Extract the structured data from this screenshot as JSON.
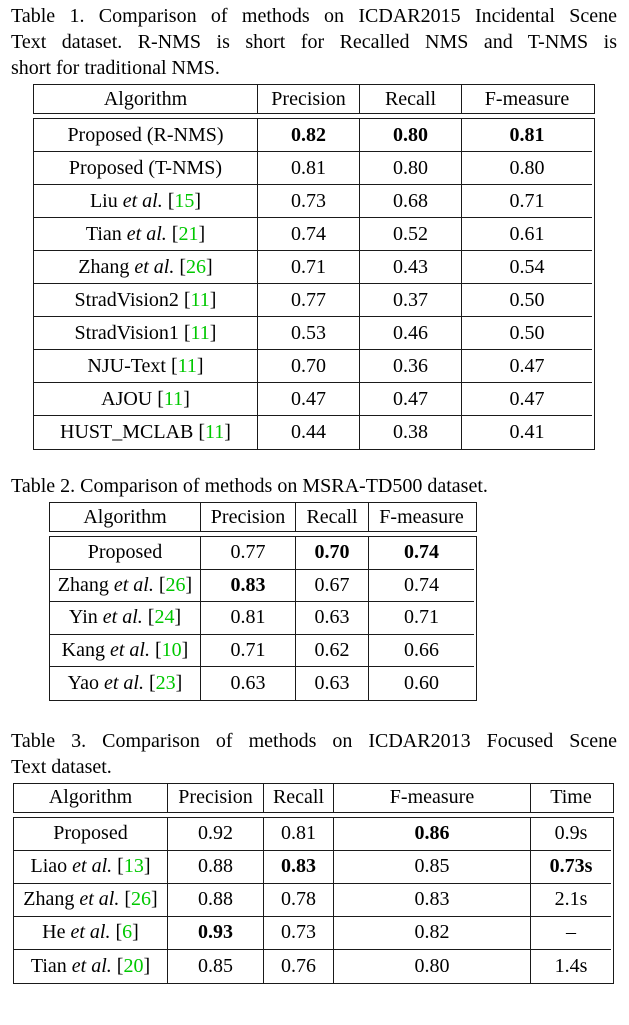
{
  "colors": {
    "page_background": "#ffffff",
    "text_black": "#000000",
    "table_border": "#1a1a1a",
    "citation_green": "#00c800"
  },
  "captions": {
    "table1": {
      "lines": [
        "Table 1. Comparison of methods on ICDAR2015 Incidental Scene",
        "Text dataset.  R-NMS is short for Recalled NMS and T-NMS is",
        "short for traditional NMS."
      ]
    },
    "table2": {
      "lines": [
        "Table 2. Comparison of methods on MSRA-TD500 dataset."
      ]
    },
    "table3": {
      "lines": [
        "Table 3. Comparison of methods on ICDAR2013 Focused Scene",
        "Text dataset."
      ]
    }
  },
  "tables": [
    {
      "name": "ICDAR2015 Incidental Scene Text results",
      "headers": [
        "Algorithm",
        "Precision",
        "Recall",
        "F-measure"
      ],
      "rows": [
        {
          "algorithm": [
            {
              "t": "Proposed (R-NMS)"
            }
          ],
          "values": [
            {
              "t": "0.82",
              "b": 1
            },
            {
              "t": "0.80",
              "b": 1
            },
            {
              "t": "0.81",
              "b": 1
            }
          ]
        },
        {
          "algorithm": [
            {
              "t": "Proposed (T-NMS)"
            }
          ],
          "values": [
            "0.81",
            "0.80",
            "0.80"
          ]
        },
        {
          "algorithm": [
            {
              "t": "Liu "
            },
            {
              "t": "et al.",
              "i": 1
            },
            {
              "t": " ["
            },
            {
              "t": "15",
              "c": 1
            },
            {
              "t": "]"
            }
          ],
          "values": [
            "0.73",
            "0.68",
            "0.71"
          ]
        },
        {
          "algorithm": [
            {
              "t": "Tian "
            },
            {
              "t": "et al.",
              "i": 1
            },
            {
              "t": " ["
            },
            {
              "t": "21",
              "c": 1
            },
            {
              "t": "]"
            }
          ],
          "values": [
            "0.74",
            "0.52",
            "0.61"
          ]
        },
        {
          "algorithm": [
            {
              "t": "Zhang "
            },
            {
              "t": "et al.",
              "i": 1
            },
            {
              "t": " ["
            },
            {
              "t": "26",
              "c": 1
            },
            {
              "t": "]"
            }
          ],
          "values": [
            "0.71",
            "0.43",
            "0.54"
          ]
        },
        {
          "algorithm": [
            {
              "t": "StradVision2 ["
            },
            {
              "t": "11",
              "c": 1
            },
            {
              "t": "]"
            }
          ],
          "values": [
            "0.77",
            "0.37",
            "0.50"
          ]
        },
        {
          "algorithm": [
            {
              "t": "StradVision1 ["
            },
            {
              "t": "11",
              "c": 1
            },
            {
              "t": "]"
            }
          ],
          "values": [
            "0.53",
            "0.46",
            "0.50"
          ]
        },
        {
          "algorithm": [
            {
              "t": "NJU-Text ["
            },
            {
              "t": "11",
              "c": 1
            },
            {
              "t": "]"
            }
          ],
          "values": [
            "0.70",
            "0.36",
            "0.47"
          ]
        },
        {
          "algorithm": [
            {
              "t": "AJOU ["
            },
            {
              "t": "11",
              "c": 1
            },
            {
              "t": "]"
            }
          ],
          "values": [
            "0.47",
            "0.47",
            "0.47"
          ]
        },
        {
          "algorithm": [
            {
              "t": "HUST_MCLAB ["
            },
            {
              "t": "11",
              "c": 1
            },
            {
              "t": "]"
            }
          ],
          "values": [
            "0.44",
            "0.38",
            "0.41"
          ]
        }
      ]
    },
    {
      "name": "MSRA-TD500 results",
      "headers": [
        "Algorithm",
        "Precision",
        "Recall",
        "F-measure"
      ],
      "rows": [
        {
          "algorithm": [
            {
              "t": "Proposed"
            }
          ],
          "values": [
            "0.77",
            {
              "t": "0.70",
              "b": 1
            },
            {
              "t": "0.74",
              "b": 1
            }
          ]
        },
        {
          "algorithm": [
            {
              "t": "Zhang "
            },
            {
              "t": "et al.",
              "i": 1
            },
            {
              "t": " ["
            },
            {
              "t": "26",
              "c": 1
            },
            {
              "t": "]"
            }
          ],
          "values": [
            {
              "t": "0.83",
              "b": 1
            },
            "0.67",
            "0.74"
          ]
        },
        {
          "algorithm": [
            {
              "t": "Yin "
            },
            {
              "t": "et al.",
              "i": 1
            },
            {
              "t": " ["
            },
            {
              "t": "24",
              "c": 1
            },
            {
              "t": "]"
            }
          ],
          "values": [
            "0.81",
            "0.63",
            "0.71"
          ]
        },
        {
          "algorithm": [
            {
              "t": "Kang "
            },
            {
              "t": "et al.",
              "i": 1
            },
            {
              "t": " ["
            },
            {
              "t": "10",
              "c": 1
            },
            {
              "t": "]"
            }
          ],
          "values": [
            "0.71",
            "0.62",
            "0.66"
          ]
        },
        {
          "algorithm": [
            {
              "t": "Yao "
            },
            {
              "t": "et al.",
              "i": 1
            },
            {
              "t": " ["
            },
            {
              "t": "23",
              "c": 1
            },
            {
              "t": "]"
            }
          ],
          "values": [
            "0.63",
            "0.63",
            "0.60"
          ]
        }
      ]
    },
    {
      "name": "ICDAR2013 Focused Scene Text results",
      "headers": [
        "Algorithm",
        "Precision",
        "Recall",
        "F-measure",
        "Time"
      ],
      "rows": [
        {
          "algorithm": [
            {
              "t": "Proposed"
            }
          ],
          "values": [
            "0.92",
            "0.81",
            {
              "t": "0.86",
              "b": 1
            },
            "0.9s"
          ]
        },
        {
          "algorithm": [
            {
              "t": "Liao "
            },
            {
              "t": "et al.",
              "i": 1
            },
            {
              "t": " ["
            },
            {
              "t": "13",
              "c": 1
            },
            {
              "t": "]"
            }
          ],
          "values": [
            "0.88",
            {
              "t": "0.83",
              "b": 1
            },
            "0.85",
            {
              "t": "0.73s",
              "b": 1
            }
          ]
        },
        {
          "algorithm": [
            {
              "t": "Zhang "
            },
            {
              "t": "et al.",
              "i": 1
            },
            {
              "t": " ["
            },
            {
              "t": "26",
              "c": 1
            },
            {
              "t": "]"
            }
          ],
          "values": [
            "0.88",
            "0.78",
            "0.83",
            "2.1s"
          ]
        },
        {
          "algorithm": [
            {
              "t": "He "
            },
            {
              "t": "et al.",
              "i": 1
            },
            {
              "t": " ["
            },
            {
              "t": "6",
              "c": 1
            },
            {
              "t": "]"
            }
          ],
          "values": [
            {
              "t": "0.93",
              "b": 1
            },
            "0.73",
            "0.82",
            "–"
          ]
        },
        {
          "algorithm": [
            {
              "t": "Tian "
            },
            {
              "t": "et al.",
              "i": 1
            },
            {
              "t": " ["
            },
            {
              "t": "20",
              "c": 1
            },
            {
              "t": "]"
            }
          ],
          "values": [
            "0.85",
            "0.76",
            "0.80",
            "1.4s"
          ]
        }
      ]
    }
  ]
}
